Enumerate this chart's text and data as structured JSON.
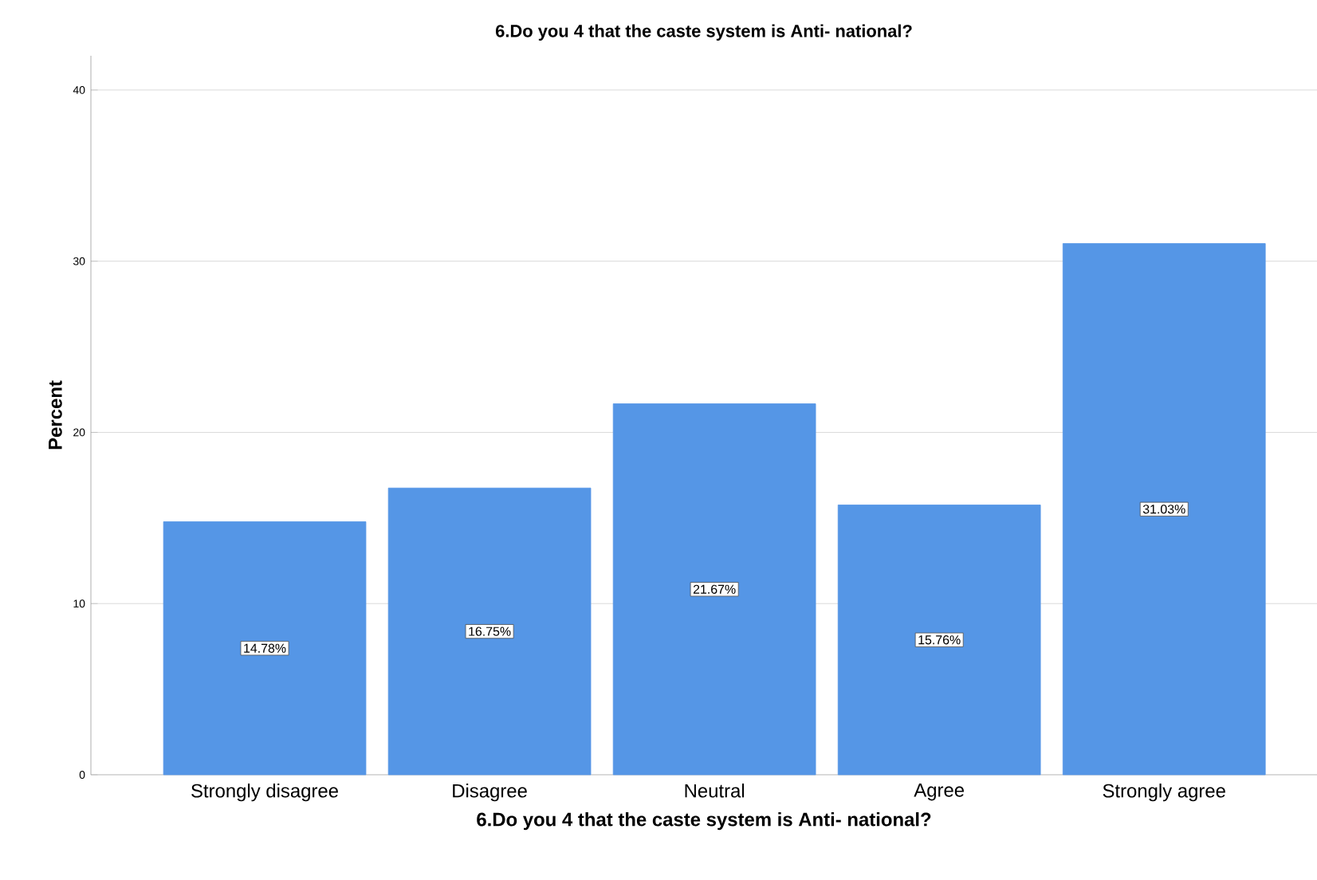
{
  "chart_data": {
    "type": "bar",
    "title": "6.Do you 4 that the caste system is Anti- national?",
    "xlabel": "6.Do you 4 that the caste system is Anti- national?",
    "ylabel": "Percent",
    "categories": [
      "Strongly disagree",
      "Disagree",
      "Neutral",
      "Agree",
      "Strongly agree"
    ],
    "values": [
      14.78,
      16.75,
      21.67,
      15.76,
      31.03
    ],
    "value_labels": [
      "14.78%",
      "16.75%",
      "21.67%",
      "15.76%",
      "31.03%"
    ],
    "color": "#5596e6",
    "ylim": [
      0,
      42
    ],
    "yticks": [
      0,
      10,
      20,
      30,
      40
    ],
    "grid": "y"
  }
}
